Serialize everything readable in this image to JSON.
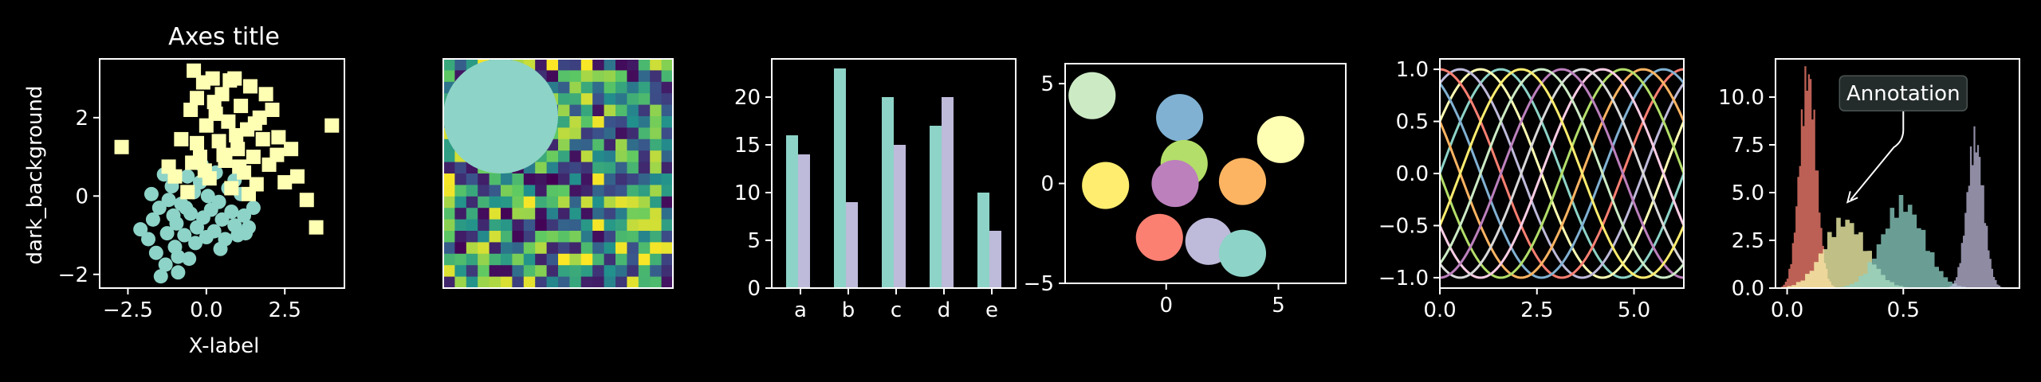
{
  "figure": {
    "style_name": "dark_background",
    "background": "#000000",
    "foreground": "#ffffff"
  },
  "chart_data": [
    {
      "type": "scatter",
      "title": "Axes title",
      "xlabel": "X-label",
      "ylabel": "dark_background",
      "xlim": [
        -3.4,
        4.4
      ],
      "ylim": [
        -2.35,
        3.5
      ],
      "xticks": [
        -2.5,
        0.0,
        2.5
      ],
      "xtick_labels": [
        "−2.5",
        "0.0",
        "2.5"
      ],
      "yticks": [
        -2,
        0,
        2
      ],
      "ytick_labels": [
        "−2",
        "0",
        "2"
      ],
      "series": [
        {
          "marker": "circle",
          "color": "#8dd3c7",
          "points": [
            [
              -2.1,
              -0.85
            ],
            [
              -1.85,
              -1.1
            ],
            [
              -1.7,
              -0.6
            ],
            [
              -1.6,
              -1.45
            ],
            [
              -1.5,
              -0.3
            ],
            [
              -1.45,
              -2.05
            ],
            [
              -1.3,
              -1.75
            ],
            [
              -1.25,
              -0.95
            ],
            [
              -1.2,
              -0.1
            ],
            [
              -1.1,
              0.25
            ],
            [
              -1.0,
              -1.3
            ],
            [
              -0.95,
              -0.7
            ],
            [
              -0.9,
              -1.95
            ],
            [
              -0.8,
              -0.2
            ],
            [
              -0.7,
              -1.0
            ],
            [
              -0.6,
              0.5
            ],
            [
              -0.55,
              -1.6
            ],
            [
              -0.5,
              -0.45
            ],
            [
              -0.4,
              0.1
            ],
            [
              -0.35,
              -1.2
            ],
            [
              -0.3,
              -0.8
            ],
            [
              -0.2,
              0.35
            ],
            [
              -0.1,
              -0.55
            ],
            [
              0.0,
              -1.05
            ],
            [
              0.05,
              0.0
            ],
            [
              0.15,
              -0.35
            ],
            [
              0.25,
              -0.9
            ],
            [
              0.3,
              0.6
            ],
            [
              0.4,
              -0.15
            ],
            [
              0.5,
              -0.6
            ],
            [
              0.6,
              -1.1
            ],
            [
              0.7,
              0.2
            ],
            [
              0.8,
              -0.4
            ],
            [
              0.9,
              -0.75
            ],
            [
              1.0,
              -1.0
            ],
            [
              1.1,
              0.05
            ],
            [
              1.2,
              -0.5
            ],
            [
              1.35,
              -0.8
            ],
            [
              1.5,
              -0.3
            ],
            [
              -1.35,
              0.55
            ],
            [
              -0.65,
              -0.3
            ],
            [
              0.45,
              -1.35
            ],
            [
              -1.75,
              0.05
            ],
            [
              -0.15,
              0.8
            ],
            [
              1.25,
              -0.95
            ],
            [
              -0.9,
              -1.55
            ],
            [
              0.9,
              0.4
            ],
            [
              -1.05,
              -0.5
            ]
          ]
        },
        {
          "marker": "square",
          "color": "#ffffb3",
          "points": [
            [
              -2.7,
              1.25
            ],
            [
              -1.2,
              0.75
            ],
            [
              -1.0,
              0.5
            ],
            [
              -0.8,
              1.45
            ],
            [
              -0.6,
              0.1
            ],
            [
              -0.5,
              2.2
            ],
            [
              -0.4,
              3.2
            ],
            [
              -0.3,
              2.5
            ],
            [
              -0.2,
              1.0
            ],
            [
              -0.1,
              2.9
            ],
            [
              0.0,
              1.8
            ],
            [
              0.1,
              0.45
            ],
            [
              0.2,
              3.0
            ],
            [
              0.3,
              2.1
            ],
            [
              0.4,
              1.4
            ],
            [
              0.5,
              2.6
            ],
            [
              0.6,
              0.9
            ],
            [
              0.7,
              1.9
            ],
            [
              0.8,
              0.2
            ],
            [
              0.9,
              3.0
            ],
            [
              1.0,
              1.2
            ],
            [
              1.1,
              2.3
            ],
            [
              1.2,
              0.6
            ],
            [
              1.3,
              1.7
            ],
            [
              1.4,
              2.8
            ],
            [
              1.5,
              1.0
            ],
            [
              1.6,
              0.3
            ],
            [
              1.7,
              2.0
            ],
            [
              1.8,
              1.45
            ],
            [
              2.0,
              0.8
            ],
            [
              2.1,
              2.2
            ],
            [
              2.3,
              1.5
            ],
            [
              2.5,
              0.35
            ],
            [
              2.7,
              1.2
            ],
            [
              2.9,
              0.5
            ],
            [
              3.2,
              -0.1
            ],
            [
              3.5,
              -0.8
            ],
            [
              4.0,
              1.8
            ],
            [
              -0.3,
              1.35
            ],
            [
              0.55,
              1.05
            ],
            [
              1.05,
              0.75
            ],
            [
              1.9,
              2.6
            ],
            [
              0.25,
              2.4
            ],
            [
              -0.05,
              0.65
            ],
            [
              1.35,
              0.05
            ],
            [
              2.25,
              1.05
            ],
            [
              0.75,
              2.95
            ],
            [
              -0.45,
              0.85
            ],
            [
              1.55,
              1.85
            ],
            [
              0.95,
              1.55
            ]
          ]
        }
      ]
    },
    {
      "type": "heatmap",
      "rows": 20,
      "cols": 20,
      "seed": 7,
      "colormap": "viridis",
      "colormap_stops": [
        "#440154",
        "#3b528b",
        "#21918c",
        "#5ec962",
        "#fde725"
      ],
      "overlay_circle": {
        "cx": 5,
        "cy": 5,
        "r": 5,
        "color": "#8dd3c7"
      }
    },
    {
      "type": "bar",
      "categories": [
        "a",
        "b",
        "c",
        "d",
        "e"
      ],
      "ylim": [
        0,
        24
      ],
      "yticks": [
        0,
        5,
        10,
        15,
        20
      ],
      "ytick_labels": [
        "0",
        "5",
        "10",
        "15",
        "20"
      ],
      "series": [
        {
          "color": "#8dd3c7",
          "values": [
            16,
            23,
            20,
            17,
            10
          ]
        },
        {
          "color": "#bebada",
          "values": [
            14,
            9,
            15,
            20,
            6
          ]
        }
      ]
    },
    {
      "type": "scatter",
      "xlim": [
        -4.5,
        8
      ],
      "ylim": [
        -5,
        6
      ],
      "xticks": [
        0,
        5
      ],
      "xtick_labels": [
        "0",
        "5"
      ],
      "yticks": [
        -5,
        0,
        5
      ],
      "ytick_labels": [
        "−5",
        "0",
        "5"
      ],
      "circles": [
        {
          "x": -3.3,
          "y": 4.4,
          "color": "#ccebc5"
        },
        {
          "x": 0.6,
          "y": 3.3,
          "color": "#80b1d3"
        },
        {
          "x": 5.1,
          "y": 2.2,
          "color": "#ffffb3"
        },
        {
          "x": 0.8,
          "y": 1.0,
          "color": "#b3de69"
        },
        {
          "x": -2.7,
          "y": -0.1,
          "color": "#ffed6f"
        },
        {
          "x": 0.4,
          "y": 0.0,
          "color": "#bc80bd"
        },
        {
          "x": 3.4,
          "y": 0.1,
          "color": "#fdb462"
        },
        {
          "x": -0.3,
          "y": -2.7,
          "color": "#fb8072"
        },
        {
          "x": 1.9,
          "y": -2.9,
          "color": "#bebada"
        },
        {
          "x": 3.4,
          "y": -3.5,
          "color": "#8dd3c7"
        }
      ],
      "radius_units": 1.05
    },
    {
      "type": "line",
      "xlim": [
        0,
        6.283
      ],
      "ylim": [
        -1.1,
        1.1
      ],
      "xticks": [
        0.0,
        2.5,
        5.0
      ],
      "xtick_labels": [
        "0.0",
        "2.5",
        "5.0"
      ],
      "yticks": [
        -1.0,
        -0.5,
        0.0,
        0.5,
        1.0
      ],
      "ytick_labels": [
        "−1.0",
        "−0.5",
        "0.0",
        "0.5",
        "1.0"
      ],
      "function": "sin(x + phase)",
      "phases_deg": [
        0,
        30,
        60,
        90,
        120,
        150,
        180,
        210,
        240,
        270,
        300,
        330
      ],
      "colors": [
        "#8dd3c7",
        "#ffffb3",
        "#bebada",
        "#fb8072",
        "#80b1d3",
        "#fdb462",
        "#b3de69",
        "#fccde5",
        "#d9d9d9",
        "#bc80bd",
        "#ccebc5",
        "#ffed6f"
      ]
    },
    {
      "type": "area",
      "xlim": [
        -0.05,
        1.0
      ],
      "ylim": [
        0,
        12
      ],
      "xticks": [
        0.0,
        0.5
      ],
      "xtick_labels": [
        "0.0",
        "0.5"
      ],
      "yticks": [
        0.0,
        2.5,
        5.0,
        7.5,
        10.0
      ],
      "ytick_labels": [
        "0.0",
        "2.5",
        "5.0",
        "7.5",
        "10.0"
      ],
      "bins": 60,
      "distributions": [
        {
          "color": "#fb8072",
          "mean": 0.09,
          "sd": 0.036,
          "peak": 11.1
        },
        {
          "color": "#ffffb3",
          "mean": 0.25,
          "sd": 0.09,
          "peak": 3.5
        },
        {
          "color": "#8dd3c7",
          "mean": 0.5,
          "sd": 0.09,
          "peak": 4.4
        },
        {
          "color": "#bebada",
          "mean": 0.81,
          "sd": 0.036,
          "peak": 7.7
        }
      ],
      "annotation": {
        "text": "Annotation",
        "xy": [
          0.26,
          4.5
        ],
        "xytext": [
          0.5,
          10.2
        ]
      }
    }
  ]
}
